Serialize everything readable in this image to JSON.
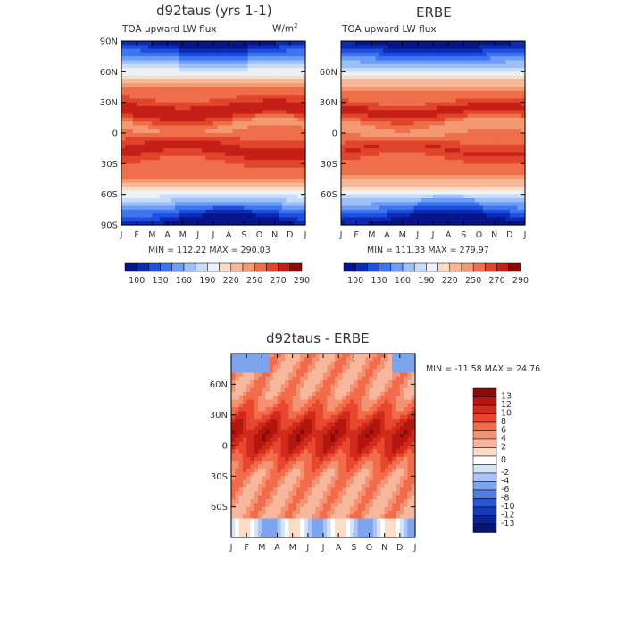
{
  "chart_data": [
    {
      "type": "heatmap",
      "id": "model",
      "title": "d92taus (yrs 1-1)",
      "subtitle_left": "TOA upward LW flux",
      "units": "W/m",
      "units_sup": "2",
      "x_ticks": [
        "J",
        "F",
        "M",
        "A",
        "M",
        "J",
        "J",
        "A",
        "S",
        "O",
        "N",
        "D",
        "J"
      ],
      "y_ticks": [
        "90N",
        "60N",
        "30N",
        "0",
        "30S",
        "60S",
        "90S"
      ],
      "stats": "MIN = 112.22  MAX = 290.03",
      "min": 112.22,
      "max": 290.03,
      "colorbar_levels": [
        "100",
        "130",
        "160",
        "190",
        "220",
        "250",
        "270",
        "290"
      ]
    },
    {
      "type": "heatmap",
      "id": "obs",
      "title": "ERBE",
      "subtitle_left": "TOA upward LW flux",
      "x_ticks": [
        "J",
        "F",
        "M",
        "A",
        "M",
        "J",
        "J",
        "A",
        "S",
        "O",
        "N",
        "D",
        "J"
      ],
      "y_ticks": [
        "60N",
        "30N",
        "0",
        "30S",
        "60S"
      ],
      "stats": "MIN = 111.33  MAX = 279.97",
      "min": 111.33,
      "max": 279.97,
      "colorbar_levels": [
        "100",
        "130",
        "160",
        "190",
        "220",
        "250",
        "270",
        "290"
      ]
    },
    {
      "type": "heatmap",
      "id": "diff",
      "title": "d92taus - ERBE",
      "x_ticks": [
        "J",
        "F",
        "M",
        "A",
        "M",
        "J",
        "J",
        "A",
        "S",
        "O",
        "N",
        "D",
        "J"
      ],
      "y_ticks": [
        "60N",
        "30N",
        "0",
        "30S",
        "60S"
      ],
      "stats": "MIN = -11.58  MAX =  24.76",
      "min": -11.58,
      "max": 24.76,
      "colorbar_levels": [
        "13",
        "12",
        "10",
        "8",
        "6",
        "4",
        "2",
        "0",
        "-2",
        "-4",
        "-6",
        "-8",
        "-10",
        "-12",
        "-13"
      ]
    }
  ],
  "colors": {
    "abs_scale": [
      "#08158a",
      "#0b2bb5",
      "#1f4fe0",
      "#3f76f0",
      "#6d9df5",
      "#9cc0f7",
      "#c6dcf7",
      "#ebf1f7",
      "#f8dcc6",
      "#f6b896",
      "#f39a73",
      "#ee6f4a",
      "#e0452c",
      "#c51f17",
      "#8e0a08"
    ],
    "diff_scale": [
      "#8e0a08",
      "#b3170f",
      "#d12a1c",
      "#e8472e",
      "#f26c4b",
      "#f49374",
      "#f7b79d",
      "#f9dcc9",
      "#ffffff",
      "#d4e3f7",
      "#a9c6f3",
      "#7ca4ef",
      "#4f7fe6",
      "#2a55d6",
      "#143bb2",
      "#0b2495",
      "#061377"
    ]
  }
}
